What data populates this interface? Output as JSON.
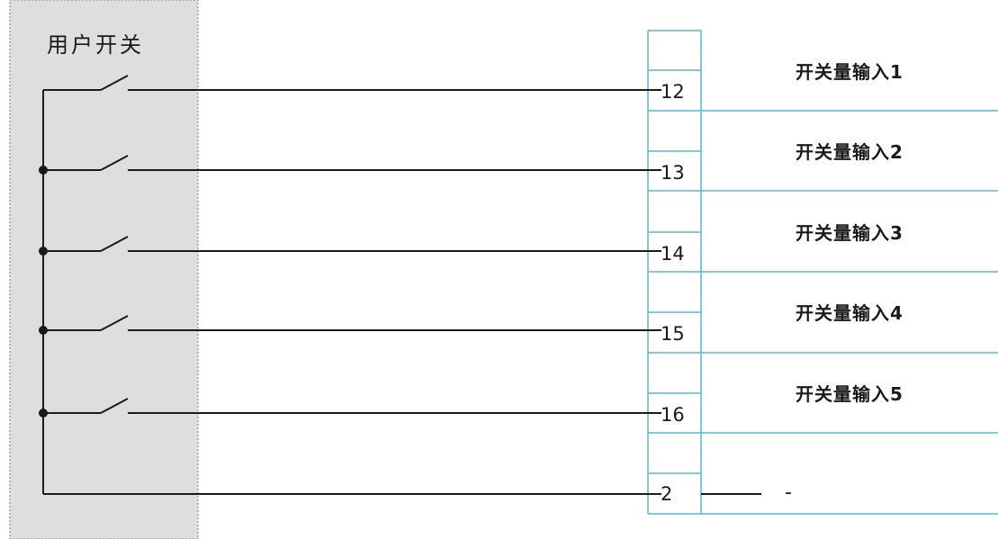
{
  "user_switch_panel": {
    "title": "用户开关",
    "colors": {
      "fill": "#dedede",
      "border": "#7a7a7a"
    }
  },
  "terminal_block": {
    "border_color": "#5fb6cc",
    "rows": [
      {
        "terminal": "12",
        "label": "开关量输入1"
      },
      {
        "terminal": "13",
        "label": "开关量输入2"
      },
      {
        "terminal": "14",
        "label": "开关量输入3"
      },
      {
        "terminal": "15",
        "label": "开关量输入4"
      },
      {
        "terminal": "16",
        "label": "开关量输入5"
      }
    ],
    "common": {
      "terminal": "2",
      "label": "-"
    }
  },
  "wire_color": "#1a1a1a"
}
